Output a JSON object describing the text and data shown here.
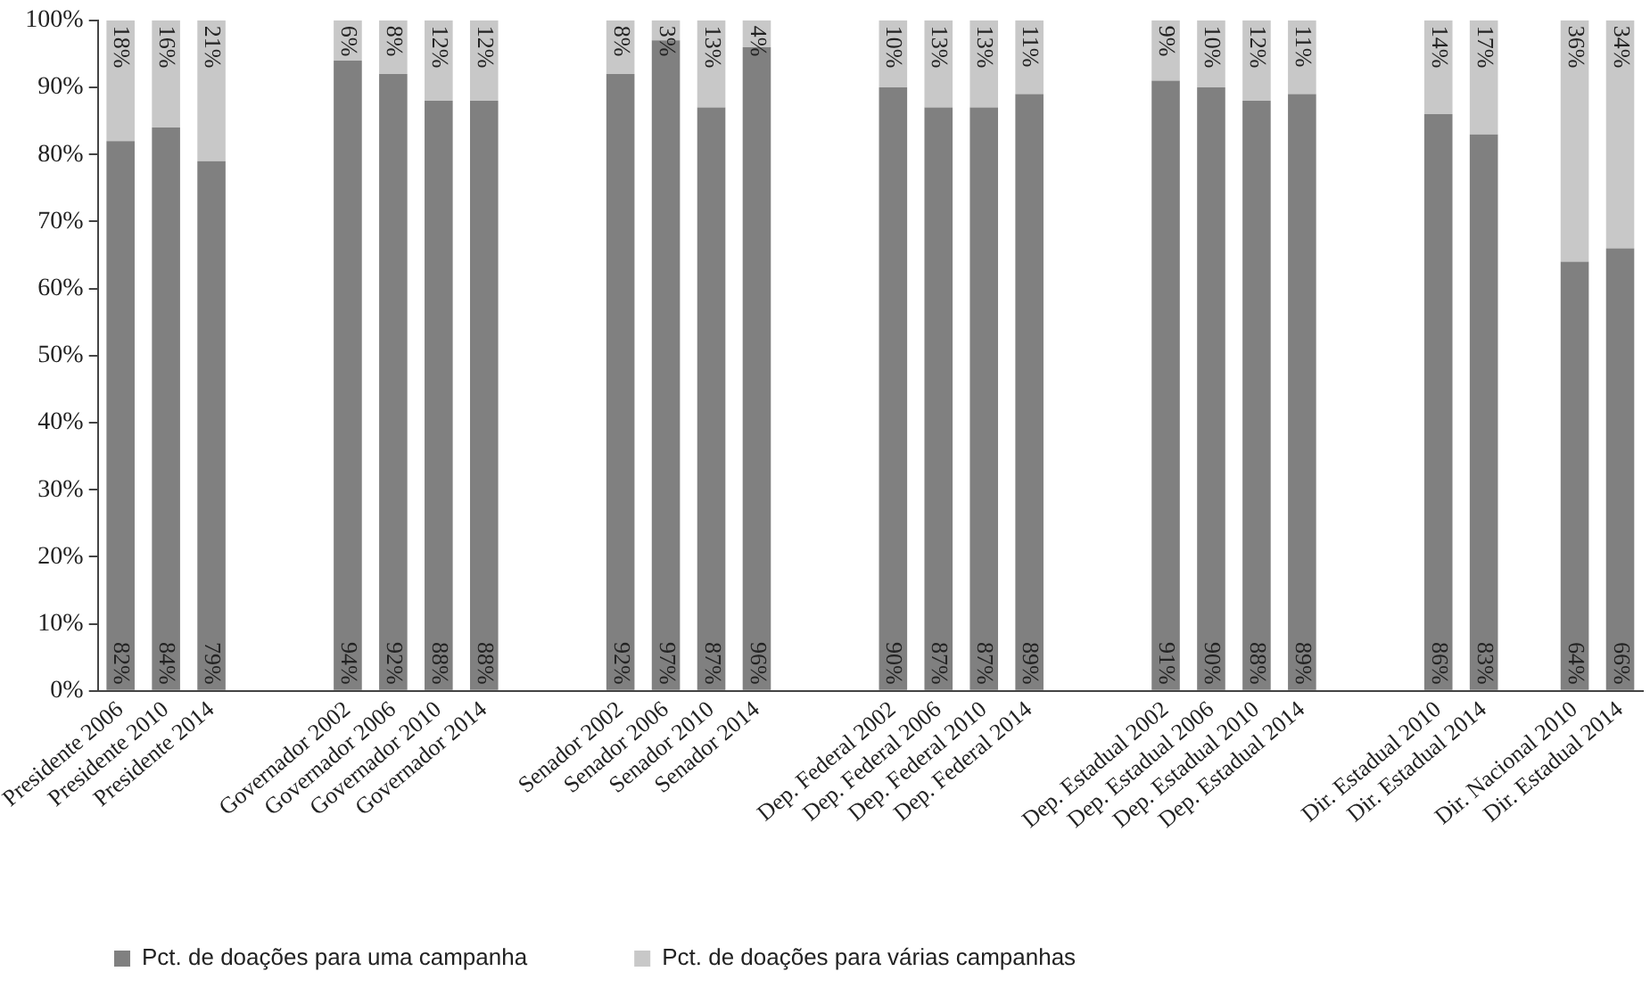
{
  "chart_data": {
    "type": "bar",
    "stacked": true,
    "data_labels": true,
    "grid": false,
    "legend": "bottom",
    "categories": [
      "Presidente 2006",
      "Presidente 2010",
      "Presidente 2014",
      null,
      null,
      "Governador 2002",
      "Governador 2006",
      "Governador 2010",
      "Governador 2014",
      null,
      null,
      "Senador 2002",
      "Senador 2006",
      "Senador 2010",
      "Senador 2014",
      null,
      null,
      "Dep. Federal 2002",
      "Dep. Federal 2006",
      "Dep. Federal 2010",
      "Dep. Federal 2014",
      null,
      null,
      "Dep. Estadual 2002",
      "Dep. Estadual 2006",
      "Dep. Estadual 2010",
      "Dep. Estadual 2014",
      null,
      null,
      "Dir. Estadual 2010",
      "Dir. Estadual 2014",
      null,
      "Dir. Nacional 2010",
      "Dir. Estadual 2014"
    ],
    "ylim": [
      0,
      100
    ],
    "yticks": [
      {
        "value": 0,
        "label": "0%"
      },
      {
        "value": 10,
        "label": "10%"
      },
      {
        "value": 20,
        "label": "20%"
      },
      {
        "value": 30,
        "label": "30%"
      },
      {
        "value": 40,
        "label": "40%"
      },
      {
        "value": 50,
        "label": "50%"
      },
      {
        "value": 60,
        "label": "60%"
      },
      {
        "value": 70,
        "label": "70%"
      },
      {
        "value": 80,
        "label": "80%"
      },
      {
        "value": 90,
        "label": "90%"
      },
      {
        "value": 100,
        "label": "100%"
      }
    ],
    "series": [
      {
        "name": "Pct. de doações para uma campanha",
        "color": "#808080",
        "values": [
          82,
          84,
          79,
          null,
          null,
          94,
          92,
          88,
          88,
          null,
          null,
          92,
          97,
          87,
          96,
          null,
          null,
          90,
          87,
          87,
          89,
          null,
          null,
          91,
          90,
          88,
          89,
          null,
          null,
          86,
          83,
          null,
          64,
          66
        ],
        "value_labels": [
          "82%",
          "84%",
          "79%",
          null,
          null,
          "94%",
          "92%",
          "88%",
          "88%",
          null,
          null,
          "92%",
          "97%",
          "87%",
          "96%",
          null,
          null,
          "90%",
          "87%",
          "87%",
          "89%",
          null,
          null,
          "91%",
          "90%",
          "88%",
          "89%",
          null,
          null,
          "86%",
          "83%",
          null,
          "64%",
          "66%"
        ]
      },
      {
        "name": "Pct. de doações para várias campanhas",
        "color": "#c8c8c8",
        "values": [
          18,
          16,
          21,
          null,
          null,
          6,
          8,
          12,
          12,
          null,
          null,
          8,
          3,
          13,
          4,
          null,
          null,
          10,
          13,
          13,
          11,
          null,
          null,
          9,
          10,
          12,
          11,
          null,
          null,
          14,
          17,
          null,
          36,
          34
        ],
        "value_labels": [
          "18%",
          "16%",
          "21%",
          null,
          null,
          "6%",
          "8%",
          "12%",
          "12%",
          null,
          null,
          "8%",
          "3%",
          "13%",
          "4%",
          null,
          null,
          "10%",
          "13%",
          "13%",
          "11%",
          null,
          null,
          "9%",
          "10%",
          "12%",
          "11%",
          null,
          null,
          "14%",
          "17%",
          null,
          "36%",
          "34%"
        ]
      }
    ]
  }
}
